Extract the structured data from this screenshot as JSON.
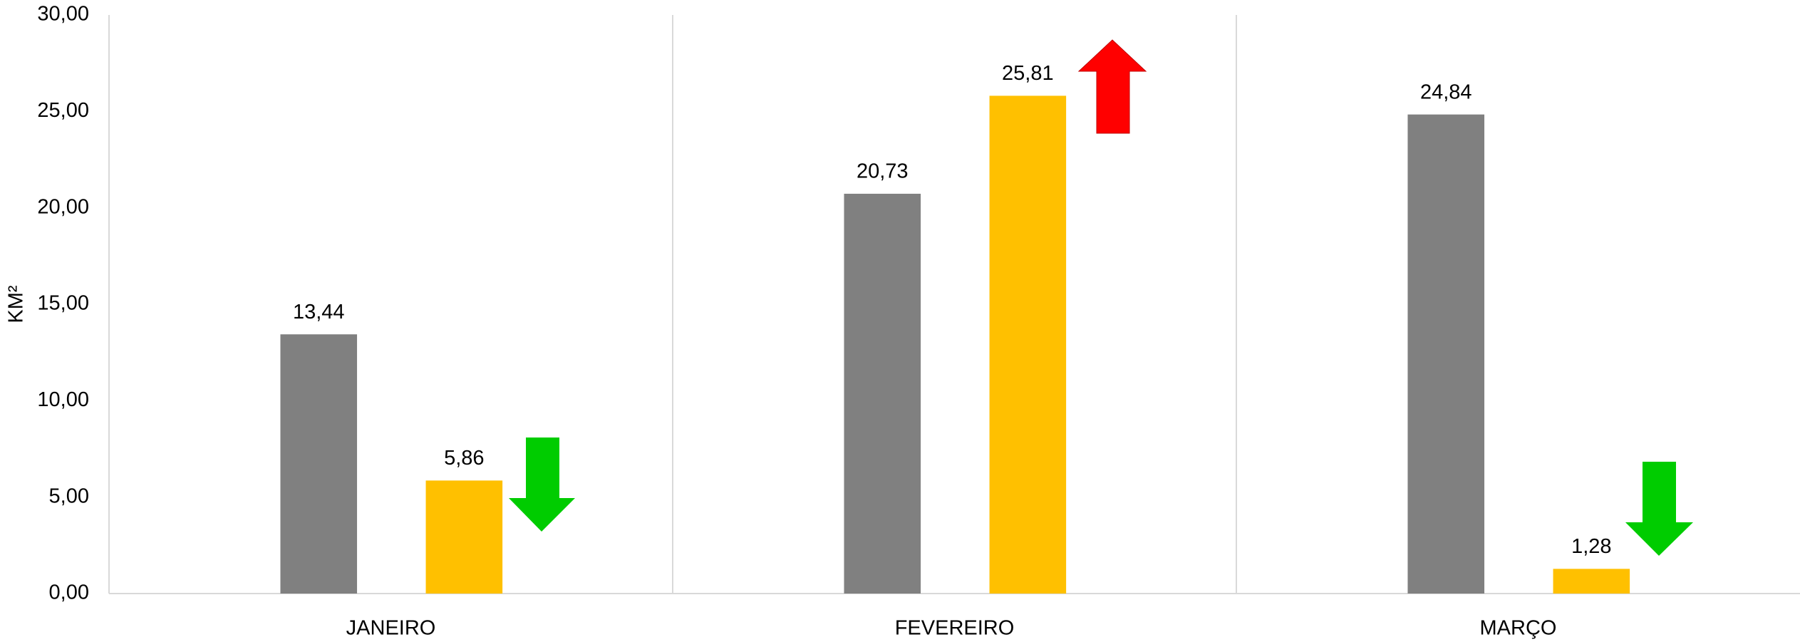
{
  "chart_data": {
    "type": "bar",
    "y_label": "KM²",
    "categories": [
      "JANEIRO",
      "FEVEREIRO",
      "MARÇO"
    ],
    "series": [
      {
        "color": "#808080",
        "values": [
          13.44,
          20.73,
          24.84
        ],
        "value_labels": [
          "13,44",
          "20,73",
          "24,84"
        ]
      },
      {
        "color": "#ffc000",
        "values": [
          5.86,
          25.81,
          1.28
        ],
        "value_labels": [
          "5,86",
          "25,81",
          "1,28"
        ]
      }
    ],
    "ylim": [
      0,
      30
    ],
    "yticks": [
      {
        "value": 0,
        "label": "0,00"
      },
      {
        "value": 5,
        "label": "5,00"
      },
      {
        "value": 10,
        "label": "10,00"
      },
      {
        "value": 15,
        "label": "15,00"
      },
      {
        "value": 20,
        "label": "20,00"
      },
      {
        "value": 25,
        "label": "25,00"
      },
      {
        "value": 30,
        "label": "30,00"
      }
    ],
    "grid": false
  }
}
